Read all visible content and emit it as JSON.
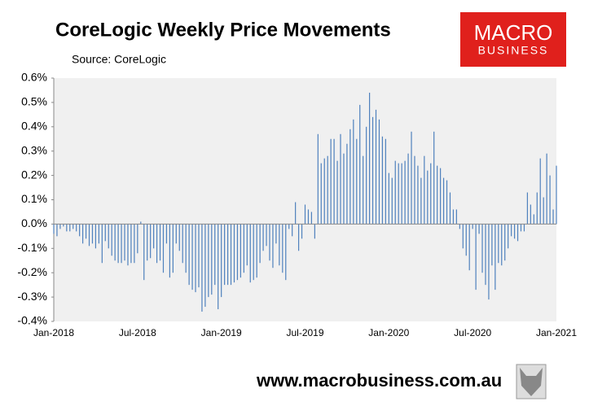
{
  "chart_data": {
    "type": "bar",
    "title": "CoreLogic Weekly Price Movements",
    "subtitle": "Source: CoreLogic",
    "logo": [
      "MACRO",
      "BUSINESS"
    ],
    "footer": "www.macrobusiness.com.au",
    "color": "#4f81bd",
    "categories": [
      "Jan-2018",
      null,
      null,
      null,
      null,
      null,
      null,
      null,
      null,
      null,
      null,
      null,
      null,
      null,
      null,
      null,
      null,
      null,
      null,
      null,
      null,
      null,
      null,
      null,
      null,
      null,
      "Jul-2018",
      null,
      null,
      null,
      null,
      null,
      null,
      null,
      null,
      null,
      null,
      null,
      null,
      null,
      null,
      null,
      null,
      null,
      null,
      null,
      null,
      null,
      null,
      null,
      null,
      null,
      "Jan-2019",
      null,
      null,
      null,
      null,
      null,
      null,
      null,
      null,
      null,
      null,
      null,
      null,
      null,
      null,
      null,
      null,
      null,
      null,
      null,
      null,
      null,
      null,
      null,
      null,
      null,
      "Jul-2019",
      null,
      null,
      null,
      null,
      null,
      null,
      null,
      null,
      null,
      null,
      null,
      null,
      null,
      null,
      null,
      null,
      null,
      null,
      null,
      null,
      null,
      null,
      null,
      null,
      null,
      "Jan-2020",
      null,
      null,
      null,
      null,
      null,
      null,
      null,
      null,
      null,
      null,
      null,
      null,
      null,
      null,
      null,
      null,
      null,
      null,
      null,
      null,
      null,
      null,
      null,
      null,
      null,
      "Jul-2020",
      null,
      null,
      null,
      null,
      null,
      null,
      null,
      null,
      null,
      null,
      null,
      null,
      null,
      null,
      null,
      null,
      null,
      null,
      null,
      null,
      null,
      null,
      null,
      null,
      null,
      "Jan-2021"
    ],
    "values": [
      -0.04,
      -0.05,
      -0.02,
      -0.01,
      -0.03,
      -0.03,
      -0.02,
      -0.03,
      -0.05,
      -0.08,
      -0.06,
      -0.09,
      -0.08,
      -0.1,
      -0.08,
      -0.16,
      -0.07,
      -0.1,
      -0.13,
      -0.15,
      -0.16,
      -0.16,
      -0.15,
      -0.17,
      -0.16,
      -0.16,
      -0.12,
      0.01,
      -0.23,
      -0.15,
      -0.14,
      -0.1,
      -0.16,
      -0.15,
      -0.2,
      -0.08,
      -0.22,
      -0.2,
      -0.08,
      -0.11,
      -0.16,
      -0.2,
      -0.25,
      -0.27,
      -0.28,
      -0.26,
      -0.36,
      -0.34,
      -0.3,
      -0.29,
      -0.25,
      -0.35,
      -0.3,
      -0.25,
      -0.25,
      -0.25,
      -0.24,
      -0.23,
      -0.22,
      -0.2,
      -0.17,
      -0.24,
      -0.23,
      -0.22,
      -0.16,
      -0.11,
      -0.09,
      -0.15,
      -0.18,
      -0.08,
      -0.17,
      -0.2,
      -0.23,
      -0.02,
      -0.05,
      0.09,
      -0.11,
      -0.06,
      0.08,
      0.06,
      0.05,
      -0.06,
      0.37,
      0.25,
      0.27,
      0.28,
      0.35,
      0.35,
      0.26,
      0.37,
      0.29,
      0.33,
      0.39,
      0.43,
      0.35,
      0.49,
      0.28,
      0.4,
      0.54,
      0.44,
      0.47,
      0.43,
      0.36,
      0.35,
      0.21,
      0.19,
      0.26,
      0.25,
      0.25,
      0.26,
      0.29,
      0.38,
      0.28,
      0.24,
      0.19,
      0.28,
      0.22,
      0.25,
      0.38,
      0.24,
      0.23,
      0.19,
      0.18,
      0.13,
      0.06,
      0.06,
      -0.02,
      -0.1,
      -0.13,
      -0.19,
      -0.02,
      -0.27,
      -0.04,
      -0.2,
      -0.25,
      -0.31,
      -0.17,
      -0.27,
      -0.16,
      -0.17,
      -0.15,
      -0.1,
      -0.05,
      -0.06,
      -0.07,
      -0.03,
      -0.03,
      0.13,
      0.08,
      0.04,
      0.13,
      0.27,
      0.11,
      0.29,
      0.2,
      0.06,
      0.24
    ],
    "ylim": [
      -0.4,
      0.6
    ],
    "yticks": [
      {
        "value": -0.4,
        "label": "-0.4%"
      },
      {
        "value": -0.3,
        "label": "-0.3%"
      },
      {
        "value": -0.2,
        "label": "-0.2%"
      },
      {
        "value": -0.1,
        "label": "-0.1%"
      },
      {
        "value": 0,
        "label": "0.0%"
      },
      {
        "value": 0.1,
        "label": "0.1%"
      },
      {
        "value": 0.2,
        "label": "0.2%"
      },
      {
        "value": 0.3,
        "label": "0.3%"
      },
      {
        "value": 0.4,
        "label": "0.4%"
      },
      {
        "value": 0.5,
        "label": "0.5%"
      },
      {
        "value": 0.6,
        "label": "0.6%"
      }
    ]
  }
}
